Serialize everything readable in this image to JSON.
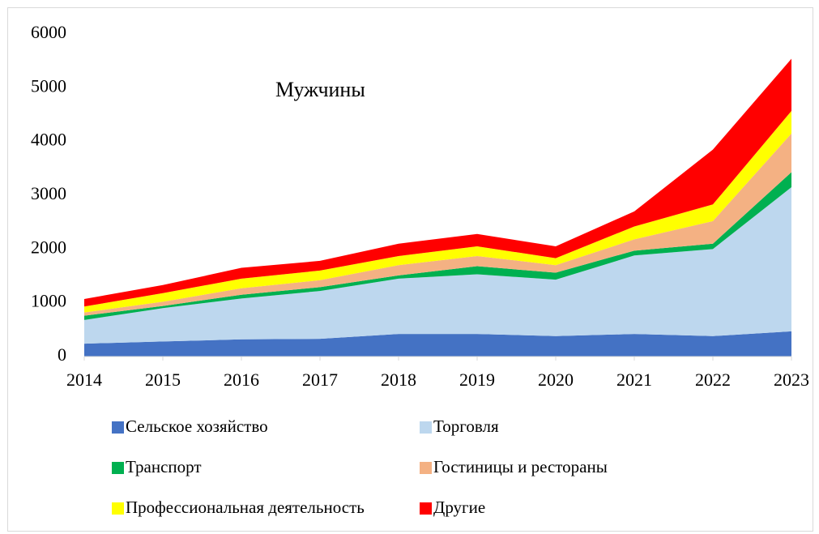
{
  "chart_data": {
    "type": "stacked_area",
    "annotation": "Мужчины",
    "x": [
      2014,
      2015,
      2016,
      2017,
      2018,
      2019,
      2020,
      2021,
      2022,
      2023
    ],
    "xlim": [
      2014,
      2023
    ],
    "xticks": [
      2014,
      2015,
      2016,
      2017,
      2018,
      2019,
      2020,
      2021,
      2022,
      2023
    ],
    "ylim": [
      0,
      6000
    ],
    "yticks": [
      0,
      1000,
      2000,
      3000,
      4000,
      5000,
      6000
    ],
    "grid": false,
    "series": [
      {
        "name": "Сельское  хозяйство",
        "color": "#4472c4",
        "values": [
          240,
          280,
          320,
          330,
          420,
          420,
          380,
          420,
          380,
          470
        ]
      },
      {
        "name": "Торговля",
        "color": "#bdd7ee",
        "values": [
          440,
          620,
          760,
          890,
          1030,
          1110,
          1050,
          1460,
          1620,
          2680
        ]
      },
      {
        "name": "Транспорт",
        "color": "#00b050",
        "values": [
          80,
          40,
          70,
          70,
          60,
          150,
          130,
          90,
          100,
          280
        ]
      },
      {
        "name": "Гостиницы и рестораны",
        "color": "#f4b183",
        "values": [
          60,
          80,
          120,
          130,
          190,
          190,
          140,
          210,
          420,
          720
        ]
      },
      {
        "name": "Профессиональная деятельность",
        "color": "#ffff00",
        "values": [
          110,
          160,
          180,
          180,
          170,
          180,
          130,
          240,
          310,
          420
        ]
      },
      {
        "name": "Другие",
        "color": "#ff0000",
        "values": [
          140,
          150,
          200,
          180,
          230,
          230,
          220,
          280,
          1020,
          970
        ]
      }
    ]
  }
}
